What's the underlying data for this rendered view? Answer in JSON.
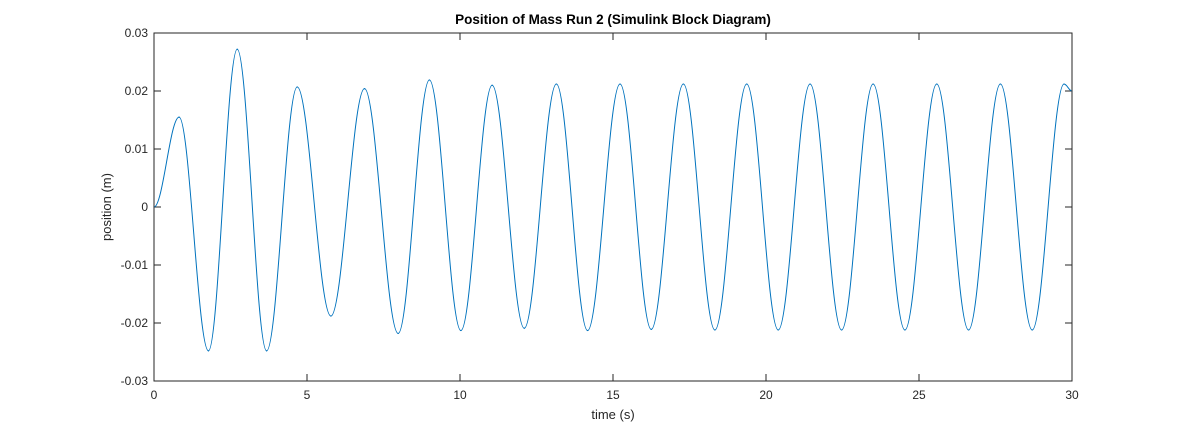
{
  "chart_data": {
    "type": "line",
    "title": "Position of Mass Run 2 (Simulink Block Diagram)",
    "xlabel": "time (s)",
    "ylabel": "position (m)",
    "xlim": [
      0,
      30
    ],
    "ylim": [
      -0.03,
      0.03
    ],
    "xticks": [
      0,
      5,
      10,
      15,
      20,
      25,
      30
    ],
    "xtick_labels": [
      "0",
      "5",
      "10",
      "15",
      "20",
      "25",
      "30"
    ],
    "yticks": [
      -0.03,
      -0.02,
      -0.01,
      0,
      0.01,
      0.02,
      0.03
    ],
    "ytick_labels": [
      "-0.03",
      "-0.02",
      "-0.01",
      "0",
      "0.01",
      "0.02",
      "0.03"
    ],
    "grid": false,
    "line_color": "#0072BD",
    "series": [
      {
        "x": [
          0,
          0.82,
          1.78,
          2.72,
          3.68,
          4.68,
          5.78,
          6.88,
          7.98,
          9.0,
          10.03,
          11.05,
          12.1,
          13.15,
          14.17,
          15.23,
          16.25,
          17.3,
          18.33,
          19.37,
          20.4,
          21.44,
          22.47,
          23.5,
          24.54,
          25.58,
          26.62,
          27.66,
          28.7,
          29.74,
          30.0
        ],
        "y": [
          0,
          0.0155,
          -0.0248,
          0.0272,
          -0.0248,
          0.0207,
          -0.0188,
          0.0204,
          -0.0218,
          0.0219,
          -0.0213,
          0.021,
          -0.0209,
          0.0212,
          -0.0213,
          0.0212,
          -0.0211,
          0.0212,
          -0.0212,
          0.0212,
          -0.0212,
          0.0212,
          -0.0212,
          0.0212,
          -0.0212,
          0.0212,
          -0.0212,
          0.0212,
          -0.0212,
          0.0212,
          0.02
        ]
      }
    ]
  }
}
